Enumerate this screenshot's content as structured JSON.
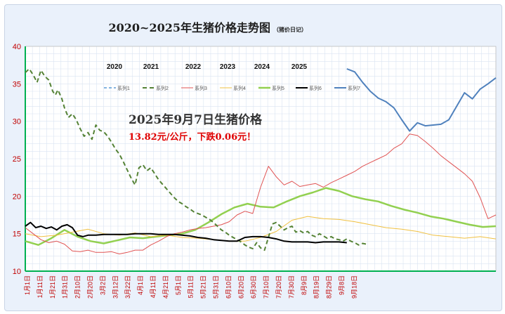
{
  "chart_data": {
    "type": "line",
    "title": "2020~2025年生猪价格走势图",
    "subtitle": "（猪价日记）",
    "ylim": [
      10,
      40
    ],
    "yticks": [
      10,
      15,
      20,
      25,
      30,
      35,
      40
    ],
    "grid": true,
    "legend_position": "top",
    "x_labels": [
      "1月1日",
      "1月11日",
      "1月21日",
      "1月31日",
      "2月10日",
      "2月20日",
      "3月2日",
      "3月12日",
      "3月22日",
      "4月1日",
      "4月11日",
      "4月21日",
      "5月1日",
      "5月11日",
      "5月21日",
      "5月31日",
      "6月10日",
      "6月20日",
      "6月30日",
      "7月10日",
      "7月20日",
      "7月30日",
      "8月9日",
      "8月19日",
      "8月29日",
      "9月8日",
      "9月18日"
    ],
    "year_labels": [
      "2020",
      "2021",
      "2022",
      "2023",
      "2024",
      "2025"
    ],
    "annotation": {
      "line1": "2025年9月7日生猪价格",
      "line2": "13.82元/公斤，下跌0.06元！"
    },
    "series": [
      {
        "name": "系列1",
        "color": "#5b9bd5",
        "dash": "4,3",
        "width": 1.5,
        "x": [],
        "y": []
      },
      {
        "name": "系列2",
        "color": "#548235",
        "dash": "6,4",
        "width": 2,
        "x": [
          0,
          3,
          6,
          9,
          12,
          15,
          18,
          21,
          23,
          25,
          28,
          30,
          33,
          36,
          39,
          42,
          45,
          48,
          51,
          54,
          57,
          60,
          63,
          66,
          69,
          72,
          75,
          78,
          81,
          84,
          87,
          90,
          93,
          96,
          99,
          102,
          105,
          108,
          111,
          114,
          117,
          120,
          123,
          126,
          129,
          132,
          135,
          138,
          141,
          144,
          147,
          150,
          153,
          156,
          159,
          162,
          165,
          168,
          171,
          174,
          177,
          180,
          183,
          186,
          189,
          192,
          195,
          198,
          201,
          204,
          207,
          210,
          213,
          216,
          219,
          222,
          225,
          228,
          231,
          234,
          237,
          240,
          243,
          246,
          249,
          252,
          255,
          258,
          261
        ],
        "y": [
          36.5,
          37.0,
          36.2,
          35.2,
          36.8,
          36.0,
          35.5,
          34.0,
          33.5,
          34.2,
          33.0,
          31.8,
          30.5,
          31.0,
          30.2,
          29.0,
          28.0,
          28.5,
          27.6,
          29.5,
          28.8,
          28.6,
          28.0,
          27.2,
          26.3,
          25.6,
          24.6,
          23.5,
          22.4,
          21.5,
          23.8,
          24.2,
          23.4,
          23.8,
          23.0,
          22.2,
          21.6,
          21.0,
          20.4,
          19.8,
          19.3,
          19.0,
          18.6,
          18.3,
          17.9,
          17.7,
          17.5,
          17.2,
          16.9,
          16.5,
          16.0,
          15.5,
          15.2,
          14.8,
          14.5,
          14.2,
          13.9,
          13.5,
          13.2,
          13.0,
          13.8,
          13.1,
          12.8,
          14.5,
          16.3,
          16.5,
          16.0,
          15.5,
          15.8,
          16.0,
          15.2,
          15.4,
          15.1,
          15.3,
          14.8,
          14.6,
          15.0,
          14.7,
          14.4,
          14.6,
          14.3,
          14.2,
          14.0,
          14.3,
          14.0,
          13.8,
          13.5,
          13.7,
          13.6
        ]
      },
      {
        "name": "系列3",
        "color": "#e05353",
        "dash": "",
        "width": 1,
        "x": [
          0,
          6,
          12,
          18,
          24,
          30,
          36,
          42,
          48,
          54,
          60,
          66,
          72,
          78,
          84,
          90,
          96,
          102,
          108,
          114,
          120,
          126,
          132,
          138,
          144,
          150,
          156,
          162,
          168,
          174,
          180,
          186,
          192,
          198,
          204,
          210,
          216,
          222,
          228,
          234,
          240,
          246,
          252,
          258,
          264,
          270,
          276,
          282,
          288,
          294,
          300,
          306,
          312,
          318,
          324,
          330,
          336,
          342,
          348,
          354,
          360
        ],
        "y": [
          15.8,
          15.0,
          14.2,
          13.8,
          14.0,
          13.6,
          12.7,
          12.6,
          12.8,
          12.5,
          12.5,
          12.6,
          12.3,
          12.5,
          12.8,
          12.8,
          13.5,
          14.0,
          14.6,
          15.0,
          15.2,
          15.5,
          15.7,
          15.8,
          16.0,
          16.2,
          16.6,
          17.5,
          18.0,
          17.7,
          21.2,
          24.0,
          22.6,
          21.5,
          22.0,
          21.3,
          21.5,
          21.7,
          21.2,
          21.8,
          22.3,
          22.8,
          23.3,
          24.0,
          24.5,
          25.0,
          25.5,
          26.4,
          27.0,
          28.3,
          28.1,
          27.3,
          26.4,
          25.4,
          24.6,
          23.8,
          23.0,
          22.0,
          19.8,
          17.0,
          17.5
        ]
      },
      {
        "name": "系列4",
        "color": "#f0c040",
        "dash": "",
        "width": 1,
        "x": [
          0,
          12,
          24,
          36,
          48,
          60,
          72,
          84,
          96,
          108,
          120,
          132,
          144,
          156,
          168,
          180,
          192,
          204,
          216,
          228,
          240,
          252,
          264,
          276,
          288,
          300,
          312,
          324,
          336,
          348,
          360
        ],
        "y": [
          15.0,
          14.6,
          14.8,
          15.2,
          15.6,
          15.0,
          14.8,
          15.1,
          14.6,
          14.8,
          14.5,
          14.4,
          14.2,
          14.0,
          14.0,
          14.5,
          15.3,
          16.8,
          17.3,
          17.0,
          16.9,
          16.6,
          16.2,
          15.8,
          15.6,
          15.3,
          14.8,
          14.6,
          14.4,
          14.6,
          14.3
        ]
      },
      {
        "name": "系列5",
        "color": "#92d050",
        "dash": "",
        "width": 2.5,
        "x": [
          0,
          10,
          20,
          30,
          40,
          50,
          60,
          70,
          80,
          90,
          100,
          110,
          120,
          130,
          140,
          150,
          160,
          170,
          180,
          190,
          200,
          210,
          220,
          230,
          240,
          250,
          260,
          270,
          280,
          290,
          300,
          310,
          320,
          330,
          340,
          350,
          360
        ],
        "y": [
          14.0,
          13.5,
          14.4,
          15.5,
          14.6,
          14.0,
          13.7,
          14.1,
          14.5,
          14.4,
          14.6,
          14.8,
          15.0,
          15.5,
          16.5,
          17.6,
          18.5,
          19.0,
          18.6,
          18.5,
          19.3,
          20.0,
          20.5,
          21.1,
          20.7,
          20.0,
          19.6,
          19.3,
          18.7,
          18.2,
          17.8,
          17.3,
          17.0,
          16.6,
          16.2,
          15.9,
          16.0
        ]
      },
      {
        "name": "系列6",
        "color": "#000000",
        "dash": "",
        "width": 2,
        "x": [
          0,
          4,
          8,
          12,
          16,
          20,
          24,
          28,
          32,
          36,
          40,
          44,
          48,
          54,
          60,
          66,
          72,
          78,
          84,
          90,
          96,
          102,
          108,
          114,
          120,
          126,
          132,
          138,
          144,
          150,
          156,
          162,
          168,
          174,
          180,
          186,
          192,
          198,
          204,
          210,
          216,
          222,
          228,
          234,
          240,
          246
        ],
        "y": [
          16.0,
          16.5,
          15.8,
          16.0,
          15.7,
          15.9,
          15.5,
          16.0,
          16.2,
          15.8,
          14.8,
          14.6,
          14.8,
          14.8,
          14.9,
          14.9,
          14.9,
          14.9,
          15.0,
          15.0,
          15.0,
          14.9,
          14.9,
          14.9,
          14.8,
          14.7,
          14.5,
          14.4,
          14.2,
          14.1,
          14.0,
          14.0,
          14.5,
          14.6,
          14.6,
          14.5,
          14.3,
          14.0,
          13.9,
          13.9,
          13.9,
          13.8,
          13.9,
          13.9,
          13.9,
          13.8
        ]
      },
      {
        "name": "系列7",
        "color": "#4f81bd",
        "dash": "",
        "width": 2,
        "x": [
          246,
          252,
          258,
          264,
          270,
          276,
          282,
          288,
          294,
          300,
          306,
          312,
          318,
          324,
          330,
          336,
          342,
          348,
          354,
          360
        ],
        "y": [
          37.0,
          36.6,
          35.2,
          34.0,
          33.1,
          32.6,
          31.8,
          30.2,
          28.7,
          29.8,
          29.4,
          29.5,
          29.6,
          30.2,
          32.0,
          33.8,
          33.0,
          34.3,
          35.0,
          35.8
        ]
      }
    ]
  }
}
